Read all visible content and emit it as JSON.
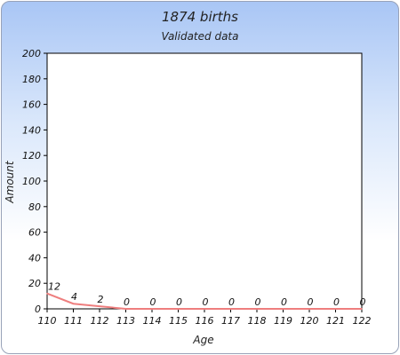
{
  "chart_data": {
    "type": "line",
    "title": "1874 births",
    "subtitle": "Validated data",
    "xlabel": "Age",
    "ylabel": "Amount",
    "x": [
      110,
      111,
      112,
      113,
      114,
      115,
      116,
      117,
      118,
      119,
      120,
      121,
      122
    ],
    "series": [
      {
        "values": [
          12,
          4,
          2,
          0,
          0,
          0,
          0,
          0,
          0,
          0,
          0,
          0,
          0
        ]
      }
    ],
    "ylim": [
      0,
      200
    ],
    "yticks": [
      0,
      20,
      40,
      60,
      80,
      100,
      120,
      140,
      160,
      180,
      200
    ],
    "grid": false,
    "data_labels": true,
    "colors": {
      "line": "#ee7e7e",
      "axis": "#000000"
    }
  }
}
